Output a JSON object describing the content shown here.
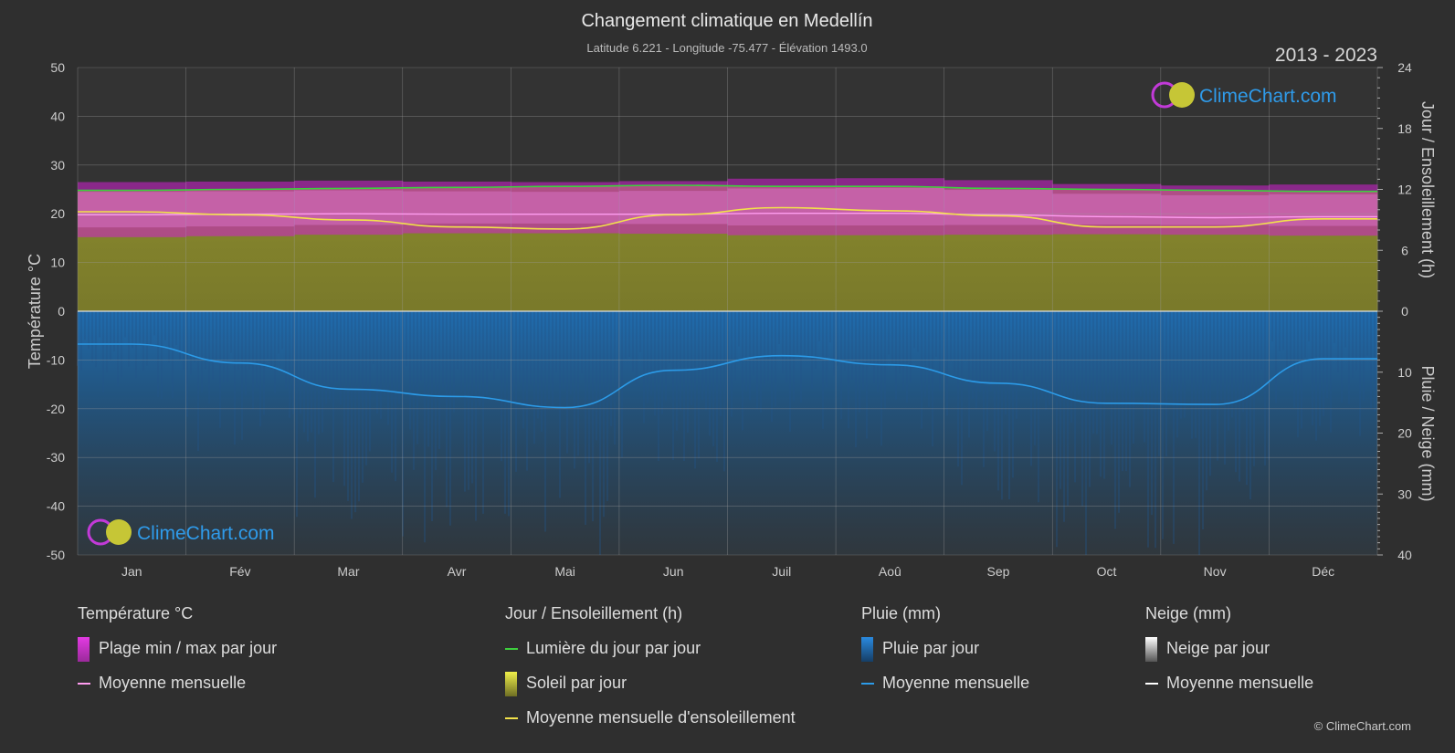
{
  "header": {
    "title": "Changement climatique en Medellín",
    "subtitle": "Latitude 6.221 - Longitude -75.477 - Élévation 1493.0",
    "period": "2013 - 2023"
  },
  "logo": {
    "text": "ClimeChart.com"
  },
  "copyright": "© ClimeChart.com",
  "colors": {
    "background": "#2f2f2f",
    "temp_range": "#d21fd2",
    "temp_mean": "#ff9cf0",
    "daylight": "#3ecf3e",
    "sunshine": "#c8c83a",
    "sunshine_mean": "#f2e24a",
    "rain": "#1f78c8",
    "rain_mean": "#2c9be8",
    "snow": "#ffffff"
  },
  "chart_data": {
    "type": "area",
    "x": [
      "Jan",
      "Fév",
      "Mar",
      "Avr",
      "Mai",
      "Jun",
      "Juil",
      "Aoû",
      "Sep",
      "Oct",
      "Nov",
      "Déc"
    ],
    "axes": {
      "left": {
        "label": "Température °C",
        "range": [
          -50,
          50
        ],
        "ticks": [
          50,
          40,
          30,
          20,
          10,
          0,
          -10,
          -20,
          -30,
          -40,
          -50
        ]
      },
      "right_top": {
        "label": "Jour / Ensoleillement (h)",
        "range": [
          0,
          24
        ],
        "ticks": [
          24,
          18,
          12,
          6,
          0
        ]
      },
      "right_bottom": {
        "label": "Pluie / Neige (mm)",
        "range": [
          0,
          40
        ],
        "ticks": [
          10,
          20,
          30,
          40
        ]
      }
    },
    "grid": true,
    "series": [
      {
        "name": "Lumière du jour par jour",
        "unit": "h",
        "values": [
          11.9,
          12.0,
          12.1,
          12.2,
          12.3,
          12.4,
          12.3,
          12.3,
          12.1,
          12.0,
          11.9,
          11.8
        ]
      },
      {
        "name": "Moyenne mensuelle d'ensoleillement",
        "unit": "h",
        "values": [
          9.8,
          9.5,
          9.0,
          8.3,
          8.1,
          9.5,
          10.2,
          9.9,
          9.4,
          8.3,
          8.3,
          9.1
        ]
      },
      {
        "name": "Plage min / max par jour (max)",
        "unit": "°C",
        "values": [
          26.5,
          26.6,
          26.8,
          26.6,
          26.5,
          26.7,
          27.2,
          27.3,
          26.9,
          26.1,
          25.8,
          26.0
        ]
      },
      {
        "name": "Plage min / max par jour (min)",
        "unit": "°C",
        "values": [
          15.2,
          15.4,
          15.7,
          16.0,
          16.0,
          15.9,
          15.6,
          15.6,
          15.7,
          15.8,
          15.7,
          15.5
        ]
      },
      {
        "name": "Moyenne mensuelle (température)",
        "unit": "°C",
        "values": [
          19.8,
          19.9,
          20.0,
          19.9,
          19.9,
          19.9,
          20.1,
          20.1,
          19.8,
          19.4,
          19.2,
          19.4
        ]
      },
      {
        "name": "Pluie moyenne mensuelle",
        "unit": "mm",
        "values": [
          5.4,
          8.5,
          12.8,
          14.0,
          15.8,
          9.7,
          7.3,
          8.8,
          11.8,
          15.1,
          15.3,
          7.8
        ]
      },
      {
        "name": "Neige moyenne mensuelle",
        "unit": "mm",
        "values": [
          0,
          0,
          0,
          0,
          0,
          0,
          0,
          0,
          0,
          0,
          0,
          0
        ]
      }
    ]
  },
  "legend": {
    "temperature": {
      "title": "Température °C",
      "items": [
        "Plage min / max par jour",
        "Moyenne mensuelle"
      ]
    },
    "sun": {
      "title": "Jour / Ensoleillement (h)",
      "items": [
        "Lumière du jour par jour",
        "Soleil par jour",
        "Moyenne mensuelle d'ensoleillement"
      ]
    },
    "rain": {
      "title": "Pluie (mm)",
      "items": [
        "Pluie par jour",
        "Moyenne mensuelle"
      ]
    },
    "snow": {
      "title": "Neige (mm)",
      "items": [
        "Neige par jour",
        "Moyenne mensuelle"
      ]
    }
  }
}
